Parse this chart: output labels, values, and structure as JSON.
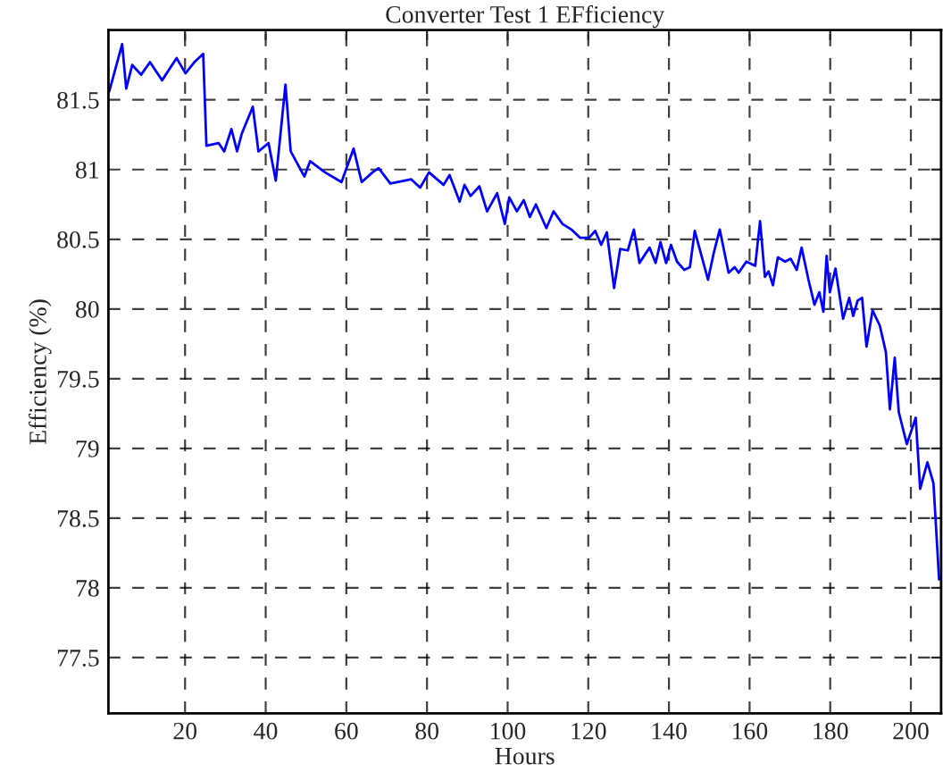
{
  "chart_data": {
    "type": "line",
    "title": "Converter Test 1 EFficiency",
    "xlabel": "Hours",
    "ylabel": "Efficiency (%)",
    "xlim": [
      1,
      207.5
    ],
    "ylim": [
      77.1,
      82
    ],
    "xticks": [
      20,
      40,
      60,
      80,
      100,
      120,
      140,
      160,
      180,
      200
    ],
    "yticks": [
      77.5,
      78,
      78.5,
      79,
      79.5,
      80,
      80.5,
      81,
      81.5
    ],
    "grid": true,
    "marker": "none",
    "line_style": "solid",
    "series": [
      {
        "color": "#0000ff",
        "x": [
          1.2,
          4.4,
          5.4,
          6.9,
          9.1,
          11.3,
          14.3,
          17.9,
          20.1,
          22.3,
          24.5,
          25.3,
          28.3,
          29.7,
          31.5,
          32.9,
          34.1,
          36.8,
          38.2,
          40.7,
          42.5,
          44.9,
          46.2,
          49.6,
          51,
          54.7,
          58.8,
          61.8,
          63.8,
          66.5,
          68,
          70.9,
          76.1,
          78.3,
          80.5,
          84.1,
          85.6,
          88.1,
          89.3,
          90.8,
          93,
          94.9,
          97.4,
          99.3,
          100.4,
          102.3,
          104,
          105.5,
          107,
          109.6,
          111.4,
          113.6,
          115.8,
          118,
          120.2,
          121.7,
          123.2,
          124.6,
          126.4,
          127.9,
          129.8,
          131.3,
          132.7,
          135.2,
          136.7,
          137.9,
          139.3,
          140.5,
          142,
          143.8,
          145.2,
          146.4,
          147.9,
          149.7,
          151.1,
          152.6,
          154.8,
          156.3,
          157.3,
          159.2,
          161.4,
          162.6,
          163.8,
          164.7,
          165.8,
          167,
          168.8,
          170.2,
          171.7,
          172.9,
          174.6,
          176.1,
          177.3,
          178.3,
          179.1,
          179.9,
          181.3,
          183.2,
          184.7,
          185.7,
          186.8,
          187.9,
          189,
          190.5,
          192.3,
          193.8,
          194.8,
          196,
          197,
          199,
          201.2,
          202.3,
          204.1,
          205.6,
          207
        ],
        "values": [
          81.56,
          81.9,
          81.58,
          81.75,
          81.68,
          81.77,
          81.64,
          81.8,
          81.69,
          81.77,
          81.83,
          81.17,
          81.19,
          81.13,
          81.29,
          81.13,
          81.26,
          81.45,
          81.13,
          81.19,
          80.92,
          81.61,
          81.13,
          80.95,
          81.06,
          80.98,
          80.91,
          81.15,
          80.91,
          80.98,
          81.01,
          80.9,
          80.93,
          80.87,
          80.98,
          80.89,
          80.96,
          80.77,
          80.89,
          80.81,
          80.88,
          80.7,
          80.83,
          80.61,
          80.8,
          80.7,
          80.78,
          80.66,
          80.75,
          80.58,
          80.7,
          80.61,
          80.57,
          80.51,
          80.51,
          80.56,
          80.46,
          80.55,
          80.15,
          80.43,
          80.42,
          80.57,
          80.33,
          80.44,
          80.33,
          80.48,
          80.33,
          80.46,
          80.34,
          80.28,
          80.3,
          80.56,
          80.4,
          80.21,
          80.4,
          80.57,
          80.26,
          80.3,
          80.26,
          80.34,
          80.31,
          80.63,
          80.23,
          80.27,
          80.17,
          80.37,
          80.34,
          80.36,
          80.28,
          80.44,
          80.21,
          80.03,
          80.12,
          79.98,
          80.38,
          80.12,
          80.29,
          79.93,
          80.08,
          79.95,
          80.06,
          80.08,
          79.73,
          79.99,
          79.88,
          79.69,
          79.28,
          79.65,
          79.26,
          79.03,
          79.22,
          78.71,
          78.9,
          78.75,
          78.06
        ]
      }
    ]
  }
}
